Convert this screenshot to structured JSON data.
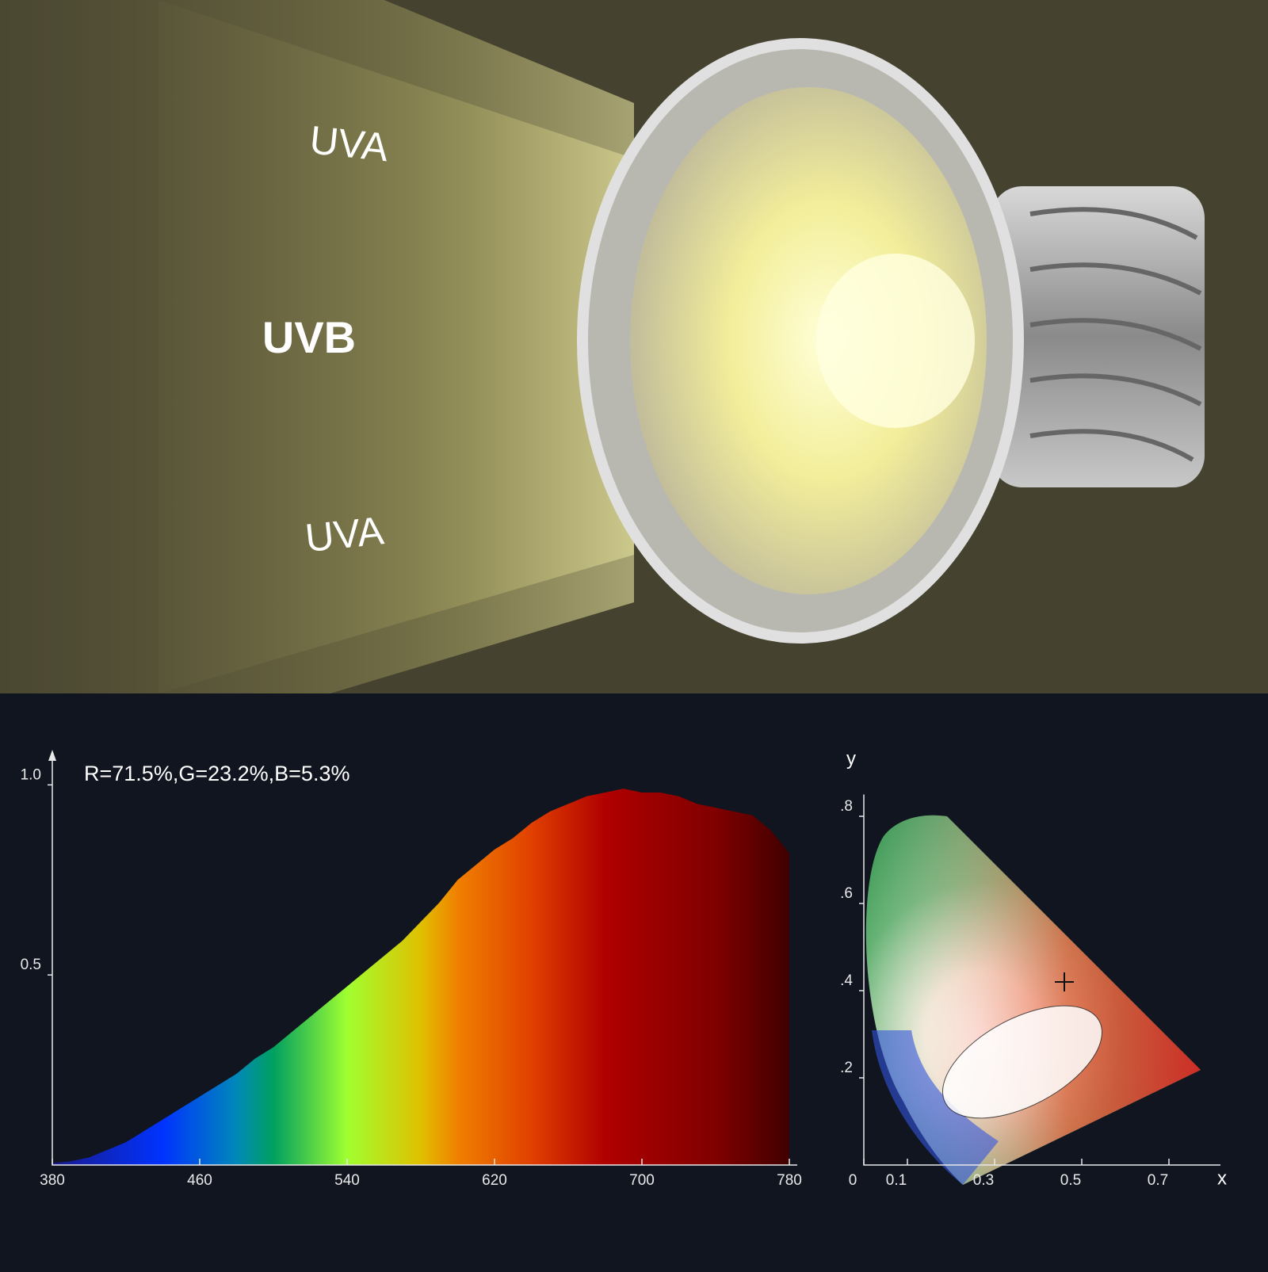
{
  "beam_labels": [
    "UVA",
    "UVB",
    "UVA"
  ],
  "chart_data": [
    {
      "type": "area",
      "annotation": "R=71.5%,G=23.2%,B=5.3%",
      "x": [
        380,
        390,
        400,
        410,
        420,
        430,
        440,
        450,
        460,
        470,
        480,
        490,
        500,
        510,
        520,
        530,
        540,
        550,
        560,
        570,
        580,
        590,
        600,
        610,
        620,
        630,
        640,
        650,
        660,
        670,
        680,
        690,
        700,
        710,
        720,
        730,
        740,
        750,
        760,
        770,
        780
      ],
      "values": [
        0.005,
        0.01,
        0.02,
        0.04,
        0.06,
        0.09,
        0.12,
        0.15,
        0.18,
        0.21,
        0.24,
        0.28,
        0.31,
        0.35,
        0.39,
        0.43,
        0.47,
        0.51,
        0.55,
        0.59,
        0.64,
        0.69,
        0.75,
        0.79,
        0.83,
        0.86,
        0.9,
        0.93,
        0.95,
        0.97,
        0.98,
        0.99,
        0.98,
        0.98,
        0.97,
        0.95,
        0.94,
        0.93,
        0.92,
        0.88,
        0.82
      ],
      "xlim": [
        380,
        780
      ],
      "xticks": [
        380,
        460,
        540,
        620,
        700,
        780
      ],
      "ylim": [
        0,
        1.08
      ],
      "yticks": [
        0.5,
        {
          "value": 1,
          "label": "1.0"
        }
      ]
    },
    {
      "type": "scatter",
      "x_label": "x",
      "y_label": "y",
      "x": [
        0.46
      ],
      "values": [
        0.42
      ],
      "xlim": [
        0,
        0.8
      ],
      "xticks": [
        0,
        0.1,
        0.3,
        0.5,
        0.7
      ],
      "ylim": [
        0,
        0.85
      ],
      "yticks": [
        {
          "value": 0.2,
          "label": ".2"
        },
        {
          "value": 0.4,
          "label": ".4"
        },
        {
          "value": 0.6,
          "label": ".6"
        },
        {
          "value": 0.8,
          "label": ".8"
        }
      ]
    }
  ]
}
